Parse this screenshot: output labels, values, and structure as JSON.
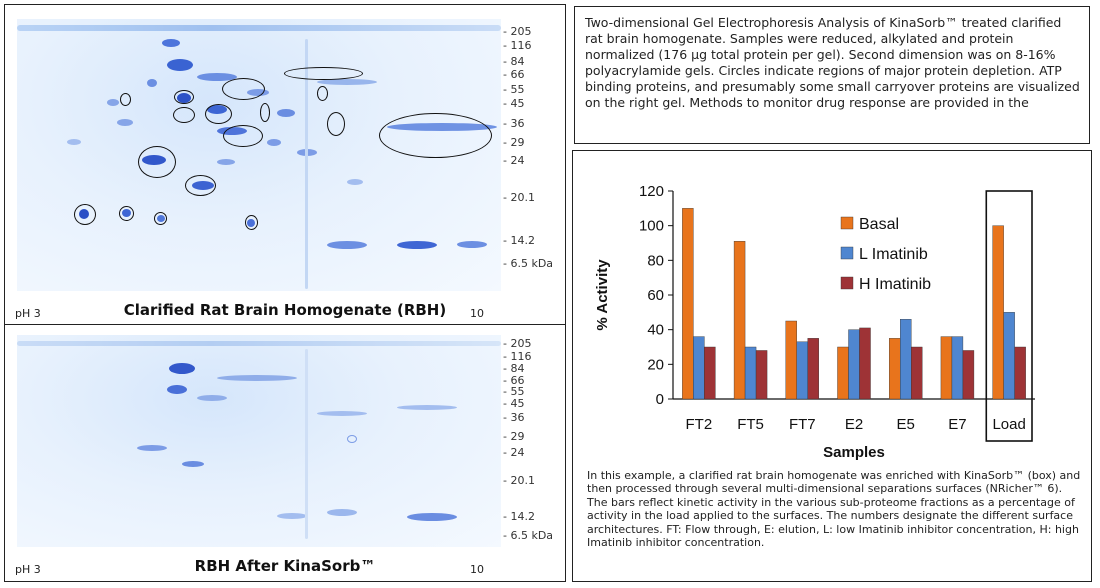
{
  "top_gel": {
    "title": "Clarified Rat Brain Homogenate (RBH)",
    "ph_left": "pH 3",
    "ph_right": "10",
    "mw_markers": [
      "- 205",
      "- 116",
      "- 84",
      "- 66",
      "- 55",
      "- 45",
      "- 36",
      "- 29",
      "- 24",
      "- 20.1",
      "- 14.2",
      "- 6.5 kDa"
    ]
  },
  "bottom_gel": {
    "title": "RBH After KinaSorb™",
    "ph_left": "pH 3",
    "ph_right": "10",
    "mw_markers": [
      "- 205",
      "- 116",
      "- 84",
      "- 66",
      "- 55",
      "- 45",
      "- 36",
      "- 29",
      "- 24",
      "- 20.1",
      "- 14.2",
      "- 6.5 kDa"
    ]
  },
  "description": "Two-dimensional Gel Electrophoresis Analysis of KinaSorb™ treated clarified rat brain homogenate. Samples were reduced, alkylated and protein normalized (176 µg total protein per gel). Second dimension was on 8-16% polyacrylamide gels. Circles indicate regions of major protein depletion. ATP binding proteins, and presumably some small carryover proteins are visualized on the right gel. Methods to monitor drug response are provided in the",
  "caption": "In this example, a clarified rat brain homogenate was enriched with KinaSorb™ (box) and then processed through several multi-dimensional separations surfaces (NRicher™ 6). The bars reflect kinetic activity in the various sub-proteome fractions as a percentage of activity in the load applied to the surfaces. The numbers designate the different surface architectures.  FT: Flow through, E: elution, L: low Imatinib inhibitor concentration, H: high Imatinib inhibitor concentration.",
  "chart_data": {
    "type": "bar",
    "categories": [
      "FT2",
      "FT5",
      "FT7",
      "E2",
      "E5",
      "E7",
      "Load"
    ],
    "series": [
      {
        "name": "Basal",
        "color": "#E8741C",
        "values": [
          110,
          91,
          45,
          30,
          35,
          36,
          100
        ]
      },
      {
        "name": "L Imatinib",
        "color": "#4F86D0",
        "values": [
          36,
          30,
          33,
          40,
          46,
          36,
          50
        ]
      },
      {
        "name": "H Imatinib",
        "color": "#9E3336",
        "values": [
          30,
          28,
          35,
          41,
          30,
          28,
          30
        ]
      }
    ],
    "xlabel": "Samples",
    "ylabel": "% Activity",
    "ylim": [
      0,
      120
    ],
    "yticks": [
      "0",
      "20",
      "40",
      "60",
      "80",
      "100",
      "120"
    ],
    "legend_position": "top-right",
    "boxed_category": "Load"
  }
}
